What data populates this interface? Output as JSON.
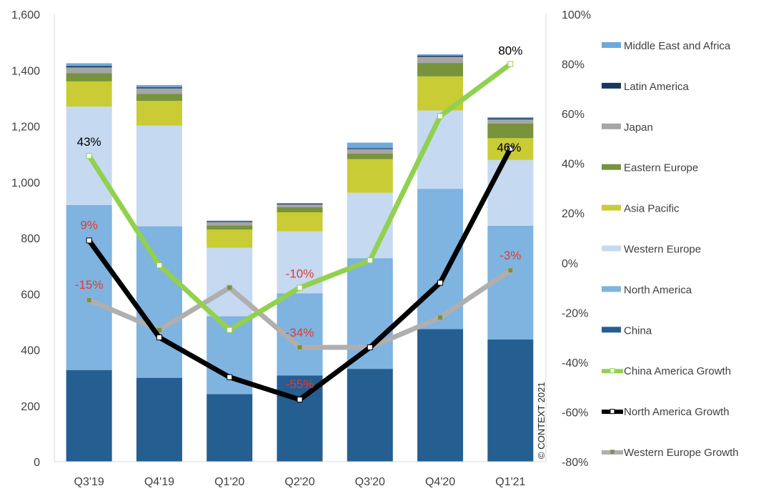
{
  "chart_data": {
    "type": "bar",
    "stacked": true,
    "categories": [
      "Q3'19",
      "Q4'19",
      "Q1'20",
      "Q2'20",
      "Q3'20",
      "Q4'20",
      "Q1'21"
    ],
    "ylim": [
      0,
      1600
    ],
    "yticks": [
      "0",
      "200",
      "400",
      "600",
      "800",
      "1,000",
      "1,200",
      "1,400",
      "1,600"
    ],
    "y2lim": [
      -80,
      100
    ],
    "y2ticks": [
      "-80%",
      "-60%",
      "-40%",
      "-20%",
      "0%",
      "20%",
      "40%",
      "60%",
      "80%",
      "100%"
    ],
    "grid": false,
    "legend_position": "right",
    "series": [
      {
        "name": "China",
        "color": "#255E91",
        "values": [
          328,
          300,
          242,
          308,
          332,
          474,
          437
        ]
      },
      {
        "name": "North America",
        "color": "#7FB3E0",
        "values": [
          590,
          542,
          278,
          294,
          396,
          502,
          407
        ]
      },
      {
        "name": "Western Europe",
        "color": "#C5D9F1",
        "values": [
          352,
          360,
          245,
          222,
          234,
          280,
          235
        ]
      },
      {
        "name": "Asia Pacific",
        "color": "#C9CC34",
        "values": [
          90,
          88,
          65,
          68,
          120,
          122,
          78
        ]
      },
      {
        "name": "Eastern Europe",
        "color": "#77933C",
        "values": [
          30,
          25,
          15,
          18,
          20,
          48,
          52
        ]
      },
      {
        "name": "Japan",
        "color": "#A6A6A6",
        "values": [
          20,
          20,
          12,
          10,
          16,
          22,
          15
        ]
      },
      {
        "name": "Latin America",
        "color": "#17375E",
        "values": [
          5,
          4,
          3,
          3,
          3,
          4,
          4
        ]
      },
      {
        "name": "Middle East and Africa",
        "color": "#6FA8DC",
        "values": [
          10,
          8,
          2,
          2,
          20,
          5,
          4
        ]
      }
    ],
    "line_series": [
      {
        "name": "China America Growth",
        "color": "#92D050",
        "axis": "right",
        "values": [
          43,
          -1,
          -27,
          -10,
          1,
          59,
          80
        ]
      },
      {
        "name": "North America Growth",
        "color": "#000000",
        "axis": "right",
        "values": [
          9,
          -30,
          -46,
          -55,
          -34,
          -8,
          46
        ]
      },
      {
        "name": "Western Europe Growth",
        "color": "#AFAFAF",
        "axis": "right",
        "values": [
          -15,
          -27,
          -10,
          -34,
          -34,
          -22,
          -3
        ]
      }
    ],
    "annotations": [
      {
        "text": "43%",
        "category": "Q3'19",
        "value": 43,
        "color": "#000000"
      },
      {
        "text": "80%",
        "category": "Q1'21",
        "value": 80,
        "color": "#000000"
      },
      {
        "text": "46%",
        "category": "Q1'21",
        "value": 46,
        "color": "#000000"
      },
      {
        "text": "9%",
        "category": "Q3'19",
        "value": 9,
        "color": "#E03C31"
      },
      {
        "text": "-15%",
        "category": "Q3'19",
        "value": -15,
        "color": "#E03C31"
      },
      {
        "text": "-10%",
        "category": "Q2'20",
        "value": -10,
        "color": "#E03C31"
      },
      {
        "text": "-34%",
        "category": "Q2'20",
        "value": -34,
        "color": "#E03C31"
      },
      {
        "text": "-55%",
        "category": "Q2'20",
        "value": -55,
        "color": "#E03C31"
      },
      {
        "text": "-3%",
        "category": "Q1'21",
        "value": -3,
        "color": "#E03C31"
      }
    ],
    "legend_order": [
      "Middle East and Africa",
      "Latin America",
      "Japan",
      "Eastern Europe",
      "Asia Pacific",
      "Western Europe",
      "North America",
      "China",
      "China America Growth",
      "North America Growth",
      "Western Europe Growth"
    ],
    "watermark": "© CONTEXT 2021"
  }
}
